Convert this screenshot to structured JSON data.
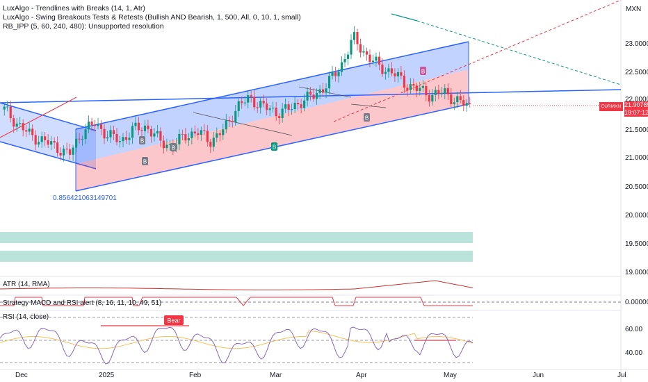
{
  "header": {
    "indicators": [
      "LuxAlgo - Trendlines with Breaks (14, 1, Atr)",
      "LuxAlgo - Swing Breakouts Tests & Retests (Bullish AND Bearish, 1, 500, All, 0, 10, 1, small)",
      "RB_IPP (5, 60, 240, 480): Unsupported resolution"
    ]
  },
  "price_axis": {
    "currency": "MXN",
    "ticks": [
      "23.00000",
      "22.50000",
      "22.00000",
      "21.50000",
      "21.00000",
      "20.50000",
      "20.00000",
      "19.50000",
      "19.00000"
    ],
    "current_symbol": "EURMXN",
    "current_price": "21.90785",
    "countdown": "19:07:12"
  },
  "time_axis": {
    "labels": [
      "Dec",
      "2025",
      "Feb",
      "Mar",
      "Apr",
      "May",
      "Jun",
      "Jul"
    ]
  },
  "annotation": {
    "fib_value": "0.856421063149701"
  },
  "panes": {
    "atr": {
      "label": "ATR (14, RMA)"
    },
    "strategy": {
      "label": "Strategy MACD and RSI alert (8, 16, 11, 10, 49, 51)",
      "tick": "0.00000"
    },
    "rsi": {
      "label": "RSI (14, close)",
      "ticks": [
        "60.00",
        "40.00"
      ],
      "bear_label": "Bear"
    }
  },
  "markers": {
    "bull": "B"
  },
  "colors": {
    "up": "#089981",
    "down": "#f23645",
    "channel_blue": "#2962ff",
    "channel_fill_blue": "rgba(41,98,255,0.28)",
    "channel_fill_red": "rgba(242,54,69,0.28)",
    "zone": "rgba(8,153,129,0.28)",
    "rsi_line": "#7e57c2",
    "rsi_ma": "#f5c05b",
    "atr_line": "#c9302c"
  },
  "chart_data": {
    "type": "candlestick",
    "symbol": "EURMXN",
    "price_range": [
      18.8,
      23.6
    ],
    "closes_approx": [
      21.85,
      21.6,
      21.4,
      21.3,
      21.2,
      21.05,
      21.45,
      21.6,
      21.4,
      21.3,
      21.5,
      21.55,
      21.3,
      21.2,
      21.4,
      21.45,
      21.3,
      21.5,
      21.9,
      22.05,
      21.9,
      21.8,
      21.85,
      22.0,
      22.1,
      22.3,
      22.6,
      23.1,
      22.8,
      22.6,
      22.5,
      22.3,
      22.2,
      22.1,
      22.15,
      22.0,
      21.9
    ],
    "rsi_levels": [
      60,
      40
    ]
  }
}
